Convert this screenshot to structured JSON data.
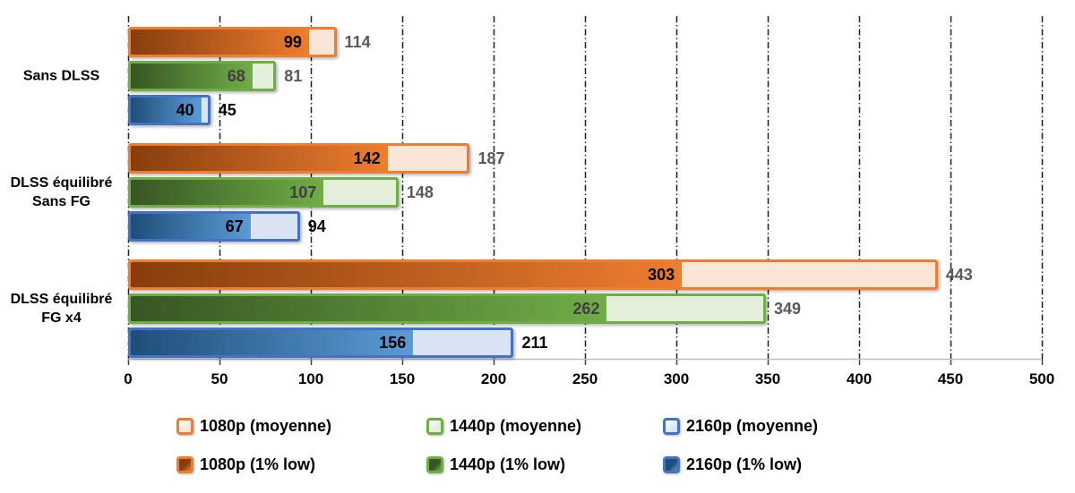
{
  "chart_data": {
    "type": "bar",
    "orientation": "horizontal",
    "title": "",
    "xlabel": "",
    "ylabel": "",
    "xlim": [
      0,
      500
    ],
    "xticks": [
      0,
      50,
      100,
      150,
      200,
      250,
      300,
      350,
      400,
      450,
      500
    ],
    "grid": "vertical dash-dot lines",
    "legend_position": "bottom",
    "groups": [
      {
        "label_lines": [
          "Sans DLSS"
        ],
        "bars": [
          {
            "series": "1080p",
            "low": 99,
            "avg": 114
          },
          {
            "series": "1440p",
            "low": 68,
            "avg": 81
          },
          {
            "series": "2160p",
            "low": 40,
            "avg": 45
          }
        ]
      },
      {
        "label_lines": [
          "DLSS équilibré",
          "Sans FG"
        ],
        "bars": [
          {
            "series": "1080p",
            "low": 142,
            "avg": 187
          },
          {
            "series": "1440p",
            "low": 107,
            "avg": 148
          },
          {
            "series": "2160p",
            "low": 67,
            "avg": 94
          }
        ]
      },
      {
        "label_lines": [
          "DLSS équilibré",
          "FG x4"
        ],
        "bars": [
          {
            "series": "1080p",
            "low": 303,
            "avg": 443
          },
          {
            "series": "1440p",
            "low": 262,
            "avg": 349
          },
          {
            "series": "2160p",
            "low": 156,
            "avg": 211
          }
        ]
      }
    ],
    "series_colors": {
      "1080p": {
        "border": "#ED7D31",
        "dark": "#873E0C",
        "mid": "#ED7D31",
        "light": "#FBE5D6",
        "low_label": "#000000",
        "avg_label": "#595959"
      },
      "1440p": {
        "border": "#70AD47",
        "dark": "#375623",
        "mid": "#70AD47",
        "light": "#E2EFDA",
        "low_label": "#404040",
        "avg_label": "#595959"
      },
      "2160p": {
        "border": "#4472C4",
        "dark": "#1F4E79",
        "mid": "#5B9BD5",
        "light": "#DAE3F3",
        "low_label": "#000000",
        "avg_label": "#000000"
      }
    },
    "grid_color": "#1f1f1f",
    "axis_line_color": "#BFBFBF",
    "tick_mark_color": "#404040"
  },
  "axis": {
    "tick_labels": [
      "0",
      "50",
      "100",
      "150",
      "200",
      "250",
      "300",
      "350",
      "400",
      "450",
      "500"
    ]
  },
  "legend": {
    "rows": [
      {
        "items": [
          {
            "label": "1080p (moyenne)",
            "series": "1080p",
            "variant": "moyenne"
          },
          {
            "label": "1440p (moyenne)",
            "series": "1440p",
            "variant": "moyenne"
          },
          {
            "label": "2160p (moyenne)",
            "series": "2160p",
            "variant": "moyenne"
          }
        ]
      },
      {
        "items": [
          {
            "label": "1080p (1% low)",
            "series": "1080p",
            "variant": "low"
          },
          {
            "label": "1440p (1% low)",
            "series": "1440p",
            "variant": "low"
          },
          {
            "label": "2160p (1% low)",
            "series": "2160p",
            "variant": "low"
          }
        ]
      }
    ]
  }
}
